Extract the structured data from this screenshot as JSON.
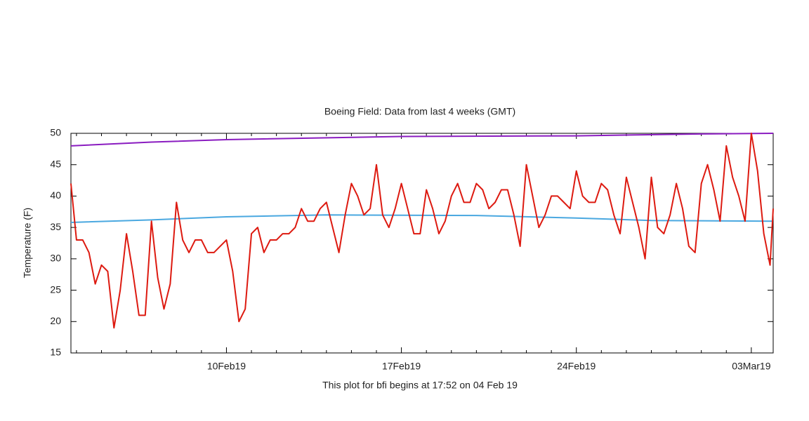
{
  "chart_data": {
    "type": "line",
    "title": "Boeing Field:  Data from last 4 weeks (GMT)",
    "xlabel": "This plot for bfi begins at 17:52 on 04 Feb 19",
    "ylabel": "Temperature (F)",
    "xlim": [
      "2019-02-03T18:40",
      "2019-03-03T21:00"
    ],
    "xticks": [
      {
        "value": "2019-02-10T00:00",
        "label": "10Feb19"
      },
      {
        "value": "2019-02-17T00:00",
        "label": "17Feb19"
      },
      {
        "value": "2019-02-24T00:00",
        "label": "24Feb19"
      },
      {
        "value": "2019-03-03T00:00",
        "label": "03Mar19"
      }
    ],
    "xminorticks": [
      "2019-02-04T00:00",
      "2019-02-05T00:00",
      "2019-02-06T00:00",
      "2019-02-07T00:00",
      "2019-02-08T00:00",
      "2019-02-09T00:00",
      "2019-02-11T00:00",
      "2019-02-12T00:00",
      "2019-02-13T00:00",
      "2019-02-14T00:00",
      "2019-02-15T00:00",
      "2019-02-16T00:00",
      "2019-02-18T00:00",
      "2019-02-19T00:00",
      "2019-02-20T00:00",
      "2019-02-21T00:00",
      "2019-02-22T00:00",
      "2019-02-23T00:00",
      "2019-02-25T00:00",
      "2019-02-26T00:00",
      "2019-02-27T00:00",
      "2019-02-28T00:00",
      "2019-03-01T00:00",
      "2019-03-02T00:00"
    ],
    "ylim": [
      15,
      50
    ],
    "yticks": [
      15,
      20,
      25,
      30,
      35,
      40,
      45,
      50
    ],
    "series": [
      {
        "color": "#8a1cc0",
        "x": [
          "2019-02-03T18:40",
          "2019-02-07T00:00",
          "2019-02-10T00:00",
          "2019-02-17T00:00",
          "2019-02-24T00:00",
          "2019-03-01T00:00",
          "2019-03-03T21:00"
        ],
        "values": [
          48,
          48.6,
          49,
          49.5,
          49.6,
          49.9,
          50
        ]
      },
      {
        "color": "#4aa8e0",
        "x": [
          "2019-02-03T18:40",
          "2019-02-07T00:00",
          "2019-02-10T00:00",
          "2019-02-14T00:00",
          "2019-02-20T00:00",
          "2019-02-24T00:00",
          "2019-02-27T00:00",
          "2019-03-03T21:00"
        ],
        "values": [
          35.8,
          36.2,
          36.7,
          37,
          36.9,
          36.5,
          36.1,
          36
        ]
      },
      {
        "color": "#dd1a10",
        "x": [
          "2019-02-03T18:40",
          "2019-02-04T00:00",
          "2019-02-04T06:00",
          "2019-02-04T12:00",
          "2019-02-04T18:00",
          "2019-02-05T00:00",
          "2019-02-05T06:00",
          "2019-02-05T12:00",
          "2019-02-05T18:00",
          "2019-02-06T00:00",
          "2019-02-06T06:00",
          "2019-02-06T12:00",
          "2019-02-06T18:00",
          "2019-02-07T00:00",
          "2019-02-07T06:00",
          "2019-02-07T12:00",
          "2019-02-07T18:00",
          "2019-02-08T00:00",
          "2019-02-08T06:00",
          "2019-02-08T12:00",
          "2019-02-08T18:00",
          "2019-02-09T00:00",
          "2019-02-09T06:00",
          "2019-02-09T12:00",
          "2019-02-09T18:00",
          "2019-02-10T00:00",
          "2019-02-10T06:00",
          "2019-02-10T12:00",
          "2019-02-10T18:00",
          "2019-02-11T00:00",
          "2019-02-11T06:00",
          "2019-02-11T12:00",
          "2019-02-11T18:00",
          "2019-02-12T00:00",
          "2019-02-12T06:00",
          "2019-02-12T12:00",
          "2019-02-12T18:00",
          "2019-02-13T00:00",
          "2019-02-13T06:00",
          "2019-02-13T12:00",
          "2019-02-13T18:00",
          "2019-02-14T00:00",
          "2019-02-14T06:00",
          "2019-02-14T12:00",
          "2019-02-14T18:00",
          "2019-02-15T00:00",
          "2019-02-15T06:00",
          "2019-02-15T12:00",
          "2019-02-15T18:00",
          "2019-02-16T00:00",
          "2019-02-16T06:00",
          "2019-02-16T12:00",
          "2019-02-16T18:00",
          "2019-02-17T00:00",
          "2019-02-17T06:00",
          "2019-02-17T12:00",
          "2019-02-17T18:00",
          "2019-02-18T00:00",
          "2019-02-18T06:00",
          "2019-02-18T12:00",
          "2019-02-18T18:00",
          "2019-02-19T00:00",
          "2019-02-19T06:00",
          "2019-02-19T12:00",
          "2019-02-19T18:00",
          "2019-02-20T00:00",
          "2019-02-20T06:00",
          "2019-02-20T12:00",
          "2019-02-20T18:00",
          "2019-02-21T00:00",
          "2019-02-21T06:00",
          "2019-02-21T12:00",
          "2019-02-21T18:00",
          "2019-02-22T00:00",
          "2019-02-22T06:00",
          "2019-02-22T12:00",
          "2019-02-22T18:00",
          "2019-02-23T00:00",
          "2019-02-23T06:00",
          "2019-02-23T12:00",
          "2019-02-23T18:00",
          "2019-02-24T00:00",
          "2019-02-24T06:00",
          "2019-02-24T12:00",
          "2019-02-24T18:00",
          "2019-02-25T00:00",
          "2019-02-25T06:00",
          "2019-02-25T12:00",
          "2019-02-25T18:00",
          "2019-02-26T00:00",
          "2019-02-26T06:00",
          "2019-02-26T12:00",
          "2019-02-26T18:00",
          "2019-02-27T00:00",
          "2019-02-27T06:00",
          "2019-02-27T12:00",
          "2019-02-27T18:00",
          "2019-02-28T00:00",
          "2019-02-28T06:00",
          "2019-02-28T12:00",
          "2019-02-28T18:00",
          "2019-03-01T00:00",
          "2019-03-01T06:00",
          "2019-03-01T12:00",
          "2019-03-01T18:00",
          "2019-03-02T00:00",
          "2019-03-02T06:00",
          "2019-03-02T12:00",
          "2019-03-02T18:00",
          "2019-03-03T00:00",
          "2019-03-03T06:00",
          "2019-03-03T12:00",
          "2019-03-03T18:00",
          "2019-03-03T21:00"
        ],
        "values": [
          42,
          33,
          33,
          31,
          26,
          29,
          28,
          19,
          25,
          34,
          28,
          21,
          21,
          36,
          27,
          22,
          26,
          39,
          33,
          31,
          33,
          33,
          31,
          31,
          32,
          33,
          28,
          20,
          22,
          34,
          35,
          31,
          33,
          33,
          34,
          34,
          35,
          38,
          36,
          36,
          38,
          39,
          35,
          31,
          37,
          42,
          40,
          37,
          38,
          45,
          37,
          35,
          38,
          42,
          38,
          34,
          34,
          41,
          38,
          34,
          36,
          40,
          42,
          39,
          39,
          42,
          41,
          38,
          39,
          41,
          41,
          37,
          32,
          45,
          40,
          35,
          37,
          40,
          40,
          39,
          38,
          44,
          40,
          39,
          39,
          42,
          41,
          37,
          34,
          43,
          39,
          35,
          30,
          43,
          35,
          34,
          37,
          42,
          38,
          32,
          31,
          42,
          45,
          41,
          36,
          48,
          43,
          40,
          36,
          50,
          44,
          34,
          29,
          38
        ]
      }
    ]
  }
}
